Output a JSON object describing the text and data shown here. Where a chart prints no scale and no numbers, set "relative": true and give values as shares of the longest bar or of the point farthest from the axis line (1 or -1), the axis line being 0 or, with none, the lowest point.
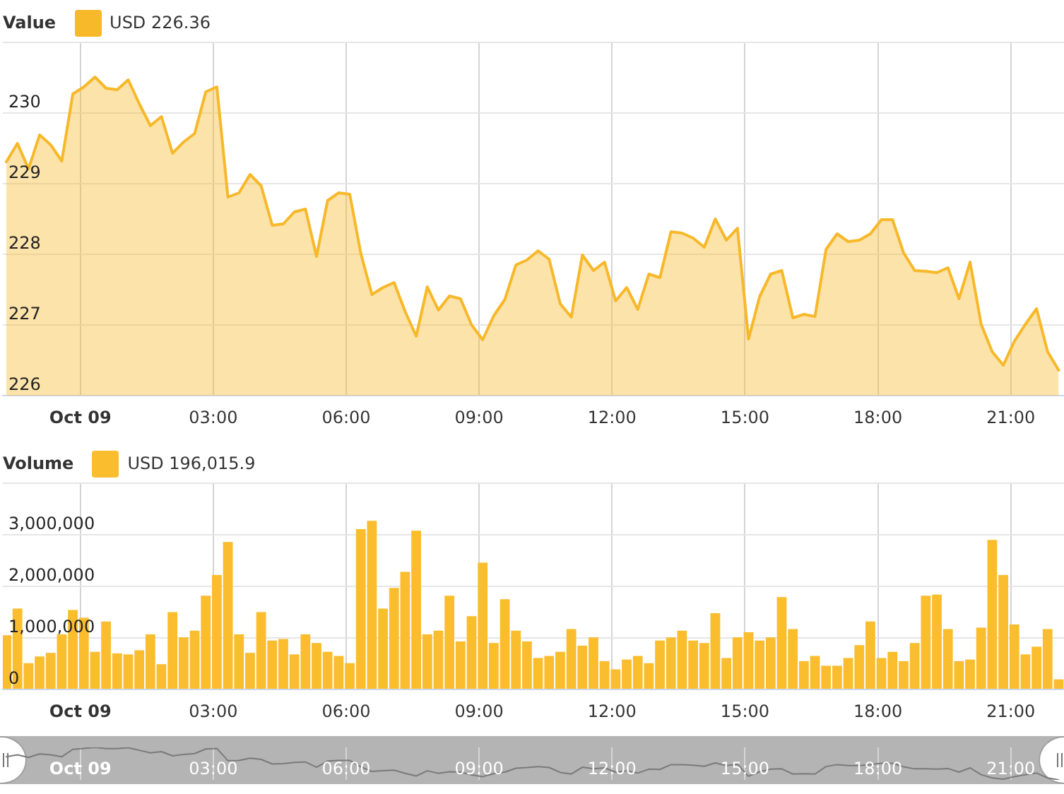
{
  "chart_data": [
    {
      "type": "area",
      "legend_title": "Value",
      "legend": "top left",
      "grid": true,
      "series": [
        {
          "name": "USD 226.36",
          "color": "#f7b82a",
          "values": [
            229.31,
            229.57,
            229.21,
            229.69,
            229.55,
            229.32,
            230.27,
            230.37,
            230.51,
            230.35,
            230.33,
            230.47,
            230.13,
            229.82,
            229.95,
            229.43,
            229.59,
            229.71,
            230.3,
            230.37,
            228.81,
            228.87,
            229.13,
            228.97,
            228.41,
            228.43,
            228.6,
            228.64,
            227.97,
            228.76,
            228.87,
            228.85,
            228.01,
            227.43,
            227.53,
            227.6,
            227.19,
            226.84,
            227.54,
            227.21,
            227.41,
            227.37,
            227,
            226.79,
            227.13,
            227.36,
            227.85,
            227.92,
            228.05,
            227.93,
            227.3,
            227.11,
            227.99,
            227.77,
            227.89,
            227.34,
            227.53,
            227.22,
            227.72,
            227.67,
            228.32,
            228.3,
            228.23,
            228.1,
            228.5,
            228.2,
            228.37,
            226.8,
            227.4,
            227.72,
            227.77,
            227.1,
            227.15,
            227.12,
            228.07,
            228.29,
            228.18,
            228.2,
            228.29,
            228.49,
            228.49,
            228.02,
            227.77,
            227.76,
            227.74,
            227.81,
            227.37,
            227.89,
            227.01,
            226.62,
            226.43,
            226.77,
            227.01,
            227.23,
            226.62,
            226.36
          ]
        }
      ],
      "x": [
        -1.67,
        -1.42,
        -1.17,
        -0.92,
        -0.67,
        -0.42,
        -0.17,
        0.08,
        0.33,
        0.58,
        0.83,
        1.08,
        1.33,
        1.58,
        1.83,
        2.08,
        2.33,
        2.58,
        2.83,
        3.08,
        3.33,
        3.58,
        3.83,
        4.08,
        4.33,
        4.58,
        4.83,
        5.08,
        5.33,
        5.58,
        5.83,
        6.08,
        6.33,
        6.58,
        6.83,
        7.08,
        7.33,
        7.58,
        7.83,
        8.08,
        8.33,
        8.58,
        8.83,
        9.08,
        9.33,
        9.58,
        9.83,
        10.08,
        10.33,
        10.58,
        10.83,
        11.08,
        11.33,
        11.58,
        11.83,
        12.08,
        12.33,
        12.58,
        12.83,
        13.08,
        13.33,
        13.58,
        13.83,
        14.08,
        14.33,
        14.58,
        14.83,
        15.08,
        15.33,
        15.58,
        15.83,
        16.08,
        16.33,
        16.58,
        16.83,
        17.08,
        17.33,
        17.58,
        17.83,
        18.08,
        18.33,
        18.58,
        18.83,
        19.08,
        19.33,
        19.58,
        19.83,
        20.08,
        20.33,
        20.58,
        20.83,
        21.08,
        21.33,
        21.58,
        21.83,
        22.08
      ],
      "xlim": [
        -1.75,
        22.2
      ],
      "xticks": [
        {
          "value": 0,
          "label": "Oct 09"
        },
        {
          "value": 3,
          "label": "03:00"
        },
        {
          "value": 6,
          "label": "06:00"
        },
        {
          "value": 9,
          "label": "09:00"
        },
        {
          "value": 12,
          "label": "12:00"
        },
        {
          "value": 15,
          "label": "15:00"
        },
        {
          "value": 18,
          "label": "18:00"
        },
        {
          "value": 21,
          "label": "21:00"
        }
      ],
      "ylim": [
        226,
        231
      ],
      "yticks": [
        226,
        227,
        228,
        229,
        230,
        {
          "value": 231,
          "label": null
        }
      ]
    },
    {
      "type": "bar",
      "legend_title": "Volume",
      "legend": "top left",
      "grid": true,
      "series": [
        {
          "name": "USD 196,015.9",
          "color": "#fabd2e",
          "values": [
            1050000,
            1570000,
            510000,
            640000,
            710000,
            1070000,
            1540000,
            1390000,
            730000,
            1320000,
            700000,
            680000,
            760000,
            1070000,
            490000,
            1500000,
            1010000,
            1140000,
            1820000,
            2220000,
            2860000,
            1070000,
            710000,
            1500000,
            950000,
            980000,
            680000,
            1070000,
            900000,
            730000,
            650000,
            510000,
            3110000,
            3270000,
            1570000,
            1970000,
            2280000,
            3080000,
            1070000,
            1140000,
            1820000,
            930000,
            1420000,
            2460000,
            900000,
            1750000,
            1140000,
            930000,
            610000,
            650000,
            730000,
            1170000,
            850000,
            1010000,
            550000,
            390000,
            580000,
            650000,
            510000,
            950000,
            1010000,
            1140000,
            950000,
            900000,
            1480000,
            610000,
            1010000,
            1110000,
            950000,
            1010000,
            1790000,
            1170000,
            550000,
            650000,
            460000,
            460000,
            610000,
            860000,
            1320000,
            610000,
            730000,
            550000,
            900000,
            1820000,
            1840000,
            1170000,
            550000,
            580000,
            1200000,
            2900000,
            2220000,
            1260000,
            680000,
            830000,
            1170000,
            196015.9
          ]
        }
      ],
      "x": [
        -1.67,
        -1.42,
        -1.17,
        -0.92,
        -0.67,
        -0.42,
        -0.17,
        0.08,
        0.33,
        0.58,
        0.83,
        1.08,
        1.33,
        1.58,
        1.83,
        2.08,
        2.33,
        2.58,
        2.83,
        3.08,
        3.33,
        3.58,
        3.83,
        4.08,
        4.33,
        4.58,
        4.83,
        5.08,
        5.33,
        5.58,
        5.83,
        6.08,
        6.33,
        6.58,
        6.83,
        7.08,
        7.33,
        7.58,
        7.83,
        8.08,
        8.33,
        8.58,
        8.83,
        9.08,
        9.33,
        9.58,
        9.83,
        10.08,
        10.33,
        10.58,
        10.83,
        11.08,
        11.33,
        11.58,
        11.83,
        12.08,
        12.33,
        12.58,
        12.83,
        13.08,
        13.33,
        13.58,
        13.83,
        14.08,
        14.33,
        14.58,
        14.83,
        15.08,
        15.33,
        15.58,
        15.83,
        16.08,
        16.33,
        16.58,
        16.83,
        17.08,
        17.33,
        17.58,
        17.83,
        18.08,
        18.33,
        18.58,
        18.83,
        19.08,
        19.33,
        19.58,
        19.83,
        20.08,
        20.33,
        20.58,
        20.83,
        21.08,
        21.33,
        21.58,
        21.83,
        22.08
      ],
      "xlim": [
        -1.75,
        22.2
      ],
      "xticks": [
        {
          "value": 0,
          "label": "Oct 09"
        },
        {
          "value": 3,
          "label": "03:00"
        },
        {
          "value": 6,
          "label": "06:00"
        },
        {
          "value": 9,
          "label": "09:00"
        },
        {
          "value": 12,
          "label": "12:00"
        },
        {
          "value": 15,
          "label": "15:00"
        },
        {
          "value": 18,
          "label": "18:00"
        },
        {
          "value": 21,
          "label": "21:00"
        }
      ],
      "ylim": [
        0,
        4000000
      ],
      "yticks": [
        0,
        {
          "value": 1000000,
          "label": "1,000,000"
        },
        {
          "value": 2000000,
          "label": "2,000,000"
        },
        {
          "value": 3000000,
          "label": "3,000,000"
        },
        {
          "value": 4000000,
          "label": null
        }
      ]
    },
    {
      "type": "line",
      "relative": true,
      "grid": "x",
      "tick_labels": "x",
      "series": [
        {
          "color": "#7a7a7a",
          "values": [
            0.71,
            0.77,
            0.69,
            0.8,
            0.77,
            0.71,
            0.94,
            0.97,
            1,
            0.96,
            0.96,
            0.99,
            0.91,
            0.83,
            0.87,
            0.74,
            0.78,
            0.81,
            0.95,
            0.97,
            0.59,
            0.6,
            0.67,
            0.63,
            0.49,
            0.5,
            0.54,
            0.55,
            0.39,
            0.58,
            0.6,
            0.6,
            0.4,
            0.26,
            0.28,
            0.3,
            0.2,
            0.12,
            0.28,
            0.2,
            0.25,
            0.24,
            0.15,
            0.1,
            0.19,
            0.24,
            0.36,
            0.38,
            0.41,
            0.38,
            0.23,
            0.18,
            0.39,
            0.34,
            0.37,
            0.24,
            0.28,
            0.21,
            0.33,
            0.32,
            0.47,
            0.47,
            0.45,
            0.42,
            0.52,
            0.44,
            0.48,
            0.11,
            0.25,
            0.33,
            0.34,
            0.18,
            0.19,
            0.18,
            0.41,
            0.47,
            0.44,
            0.44,
            0.47,
            0.51,
            0.51,
            0.4,
            0.34,
            0.34,
            0.33,
            0.35,
            0.24,
            0.37,
            0.16,
            0.06,
            0.02,
            0.1,
            0.16,
            0.21,
            0.06,
            0
          ]
        }
      ],
      "x": [
        -1.67,
        -1.42,
        -1.17,
        -0.92,
        -0.67,
        -0.42,
        -0.17,
        0.08,
        0.33,
        0.58,
        0.83,
        1.08,
        1.33,
        1.58,
        1.83,
        2.08,
        2.33,
        2.58,
        2.83,
        3.08,
        3.33,
        3.58,
        3.83,
        4.08,
        4.33,
        4.58,
        4.83,
        5.08,
        5.33,
        5.58,
        5.83,
        6.08,
        6.33,
        6.58,
        6.83,
        7.08,
        7.33,
        7.58,
        7.83,
        8.08,
        8.33,
        8.58,
        8.83,
        9.08,
        9.33,
        9.58,
        9.83,
        10.08,
        10.33,
        10.58,
        10.83,
        11.08,
        11.33,
        11.58,
        11.83,
        12.08,
        12.33,
        12.58,
        12.83,
        13.08,
        13.33,
        13.58,
        13.83,
        14.08,
        14.33,
        14.58,
        14.83,
        15.08,
        15.33,
        15.58,
        15.83,
        16.08,
        16.33,
        16.58,
        16.83,
        17.08,
        17.33,
        17.58,
        17.83,
        18.08,
        18.33,
        18.58,
        18.83,
        19.08,
        19.33,
        19.58,
        19.83,
        20.08,
        20.33,
        20.58,
        20.83,
        21.08,
        21.33,
        21.58,
        21.83,
        22.08
      ],
      "xlim": [
        -1.75,
        22.2
      ],
      "xticks": [
        {
          "value": 0,
          "label": "Oct 09"
        },
        {
          "value": 3,
          "label": "03:00"
        },
        {
          "value": 6,
          "label": "06:00"
        },
        {
          "value": 9,
          "label": "09:00"
        },
        {
          "value": 12,
          "label": "12:00"
        },
        {
          "value": 15,
          "label": "15:00"
        },
        {
          "value": 18,
          "label": "18:00"
        },
        {
          "value": 21,
          "label": "21:00"
        }
      ]
    }
  ]
}
